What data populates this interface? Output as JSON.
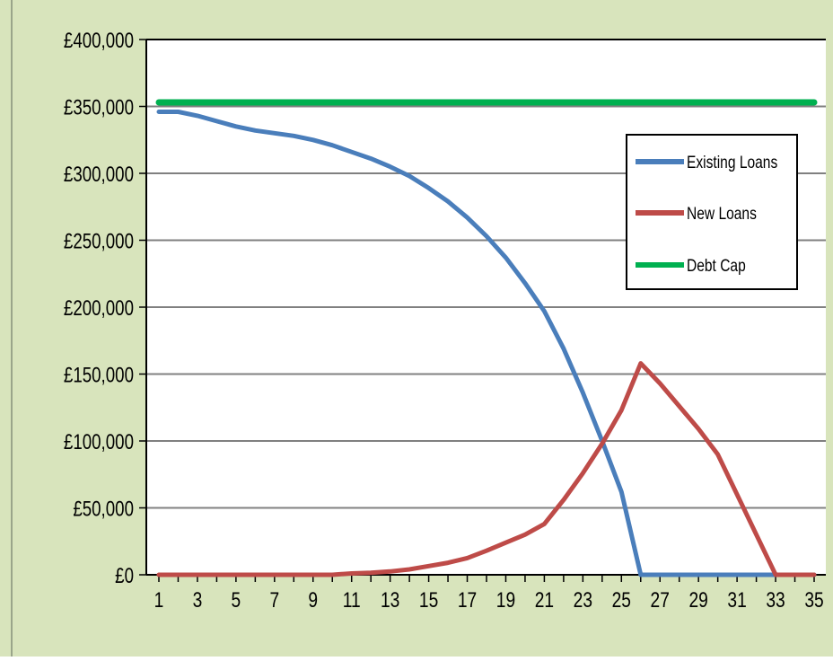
{
  "colors": {
    "background": "#d8e4bc",
    "plot_area": "#ffffff",
    "grid": "#808080",
    "existing_loans": "#4a7ebb",
    "new_loans": "#be4b48",
    "debt_cap": "#00b050"
  },
  "chart_data": {
    "type": "line",
    "title": "",
    "xlabel": "",
    "ylabel": "",
    "ylim": [
      0,
      400000
    ],
    "xlim": [
      1,
      35
    ],
    "y_tick_labels": [
      "£0",
      "£50,000",
      "£100,000",
      "£150,000",
      "£200,000",
      "£250,000",
      "£300,000",
      "£350,000",
      "£400,000"
    ],
    "x_tick_labels": [
      "1",
      "3",
      "5",
      "7",
      "9",
      "11",
      "13",
      "15",
      "17",
      "19",
      "21",
      "23",
      "25",
      "27",
      "29",
      "31",
      "33",
      "35"
    ],
    "grid": true,
    "legend_position": "right",
    "x": [
      1,
      2,
      3,
      4,
      5,
      6,
      7,
      8,
      9,
      10,
      11,
      12,
      13,
      14,
      15,
      16,
      17,
      18,
      19,
      20,
      21,
      22,
      23,
      24,
      25,
      26,
      27,
      28,
      29,
      30,
      31,
      32,
      33,
      34,
      35
    ],
    "series": [
      {
        "name": "Existing Loans",
        "values": [
          346000,
          346000,
          343000,
          339000,
          335000,
          332000,
          330000,
          328000,
          325000,
          321000,
          316000,
          311000,
          305000,
          298000,
          289000,
          279000,
          267000,
          253000,
          237000,
          218000,
          197000,
          169000,
          136000,
          100000,
          62000,
          0,
          0,
          0,
          0,
          0,
          0,
          0,
          0,
          0,
          0
        ]
      },
      {
        "name": "New Loans",
        "values": [
          0,
          0,
          0,
          0,
          0,
          0,
          0,
          0,
          0,
          0,
          1000,
          1500,
          2500,
          4000,
          6500,
          9000,
          12500,
          18000,
          24000,
          30000,
          38000,
          56000,
          76000,
          98000,
          123000,
          158000,
          143000,
          126000,
          109000,
          90000,
          60000,
          30000,
          0,
          0,
          0
        ]
      },
      {
        "name": "Debt Cap",
        "values": [
          353000,
          353000,
          353000,
          353000,
          353000,
          353000,
          353000,
          353000,
          353000,
          353000,
          353000,
          353000,
          353000,
          353000,
          353000,
          353000,
          353000,
          353000,
          353000,
          353000,
          353000,
          353000,
          353000,
          353000,
          353000,
          353000,
          353000,
          353000,
          353000,
          353000,
          353000,
          353000,
          353000,
          353000,
          353000
        ]
      }
    ]
  }
}
